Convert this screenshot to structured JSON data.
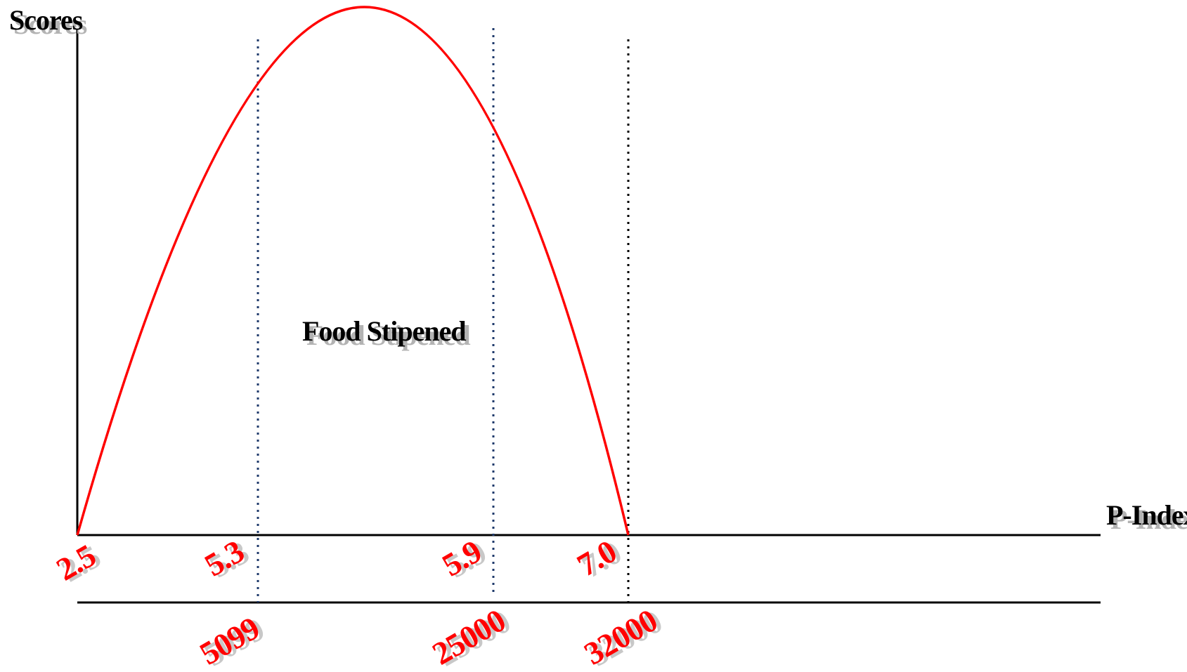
{
  "labels": {
    "y_axis": "Scores",
    "x_axis": "P-Index",
    "region": "Food Stipened"
  },
  "p_index_ticks": [
    "2.5",
    "5.3",
    "5.9",
    "7.0"
  ],
  "second_axis_ticks": [
    "5099",
    "25000",
    "32000"
  ],
  "curve": {
    "shape": "inverted parabola",
    "start": 2.5,
    "end": 7.0
  },
  "dividers": [
    {
      "at": "5.3",
      "style": "dotted",
      "color": "#1f3a6b"
    },
    {
      "at": "5.9",
      "style": "dotted",
      "color": "#1f3a6b"
    },
    {
      "at": "7.0",
      "style": "dotted",
      "color": "#000000"
    }
  ],
  "colors": {
    "curve": "#ff0000",
    "axis": "#000000",
    "tick_labels": "#ff0000",
    "blue_divider": "#1f3a6b",
    "black_divider": "#000000",
    "label_shadow": "#b3b3b3"
  }
}
